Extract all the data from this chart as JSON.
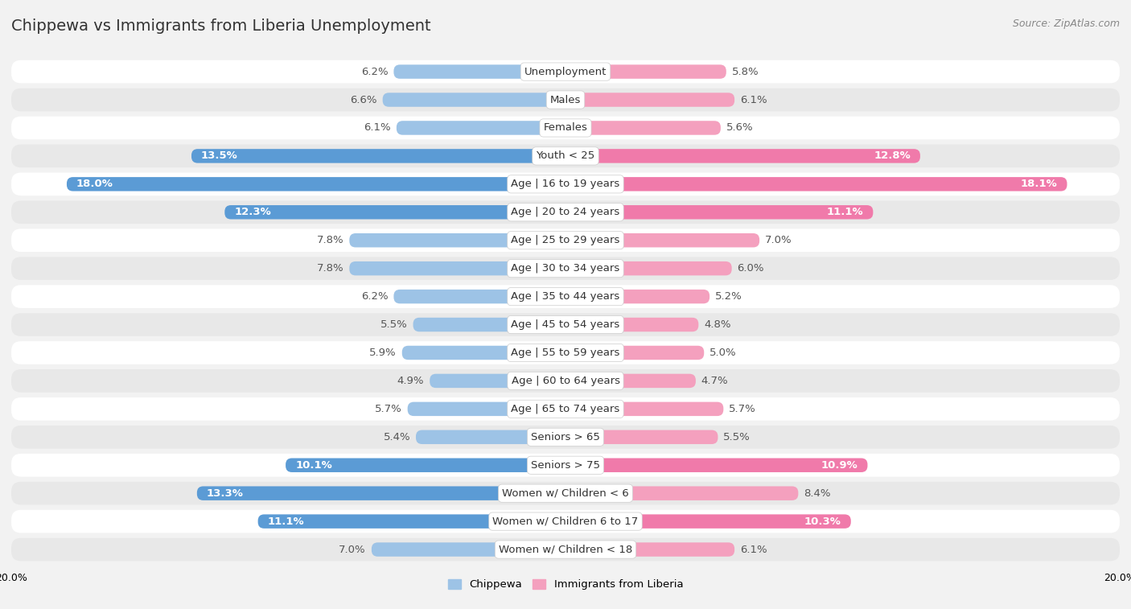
{
  "title": "Chippewa vs Immigrants from Liberia Unemployment",
  "source": "Source: ZipAtlas.com",
  "categories": [
    "Unemployment",
    "Males",
    "Females",
    "Youth < 25",
    "Age | 16 to 19 years",
    "Age | 20 to 24 years",
    "Age | 25 to 29 years",
    "Age | 30 to 34 years",
    "Age | 35 to 44 years",
    "Age | 45 to 54 years",
    "Age | 55 to 59 years",
    "Age | 60 to 64 years",
    "Age | 65 to 74 years",
    "Seniors > 65",
    "Seniors > 75",
    "Women w/ Children < 6",
    "Women w/ Children 6 to 17",
    "Women w/ Children < 18"
  ],
  "chippewa": [
    6.2,
    6.6,
    6.1,
    13.5,
    18.0,
    12.3,
    7.8,
    7.8,
    6.2,
    5.5,
    5.9,
    4.9,
    5.7,
    5.4,
    10.1,
    13.3,
    11.1,
    7.0
  ],
  "liberia": [
    5.8,
    6.1,
    5.6,
    12.8,
    18.1,
    11.1,
    7.0,
    6.0,
    5.2,
    4.8,
    5.0,
    4.7,
    5.7,
    5.5,
    10.9,
    8.4,
    10.3,
    6.1
  ],
  "chippewa_normal_color": "#9dc3e6",
  "liberia_normal_color": "#f4a0be",
  "chippewa_highlight_color": "#5b9bd5",
  "liberia_highlight_color": "#f07aaa",
  "axis_max": 20.0,
  "bg_color": "#f2f2f2",
  "row_color_odd": "#ffffff",
  "row_color_even": "#e8e8e8",
  "label_fontsize": 9.5,
  "title_fontsize": 14,
  "source_fontsize": 9,
  "highlight_thresh": 10.0,
  "legend_chippewa_color": "#9dc3e6",
  "legend_liberia_color": "#f4a0be"
}
